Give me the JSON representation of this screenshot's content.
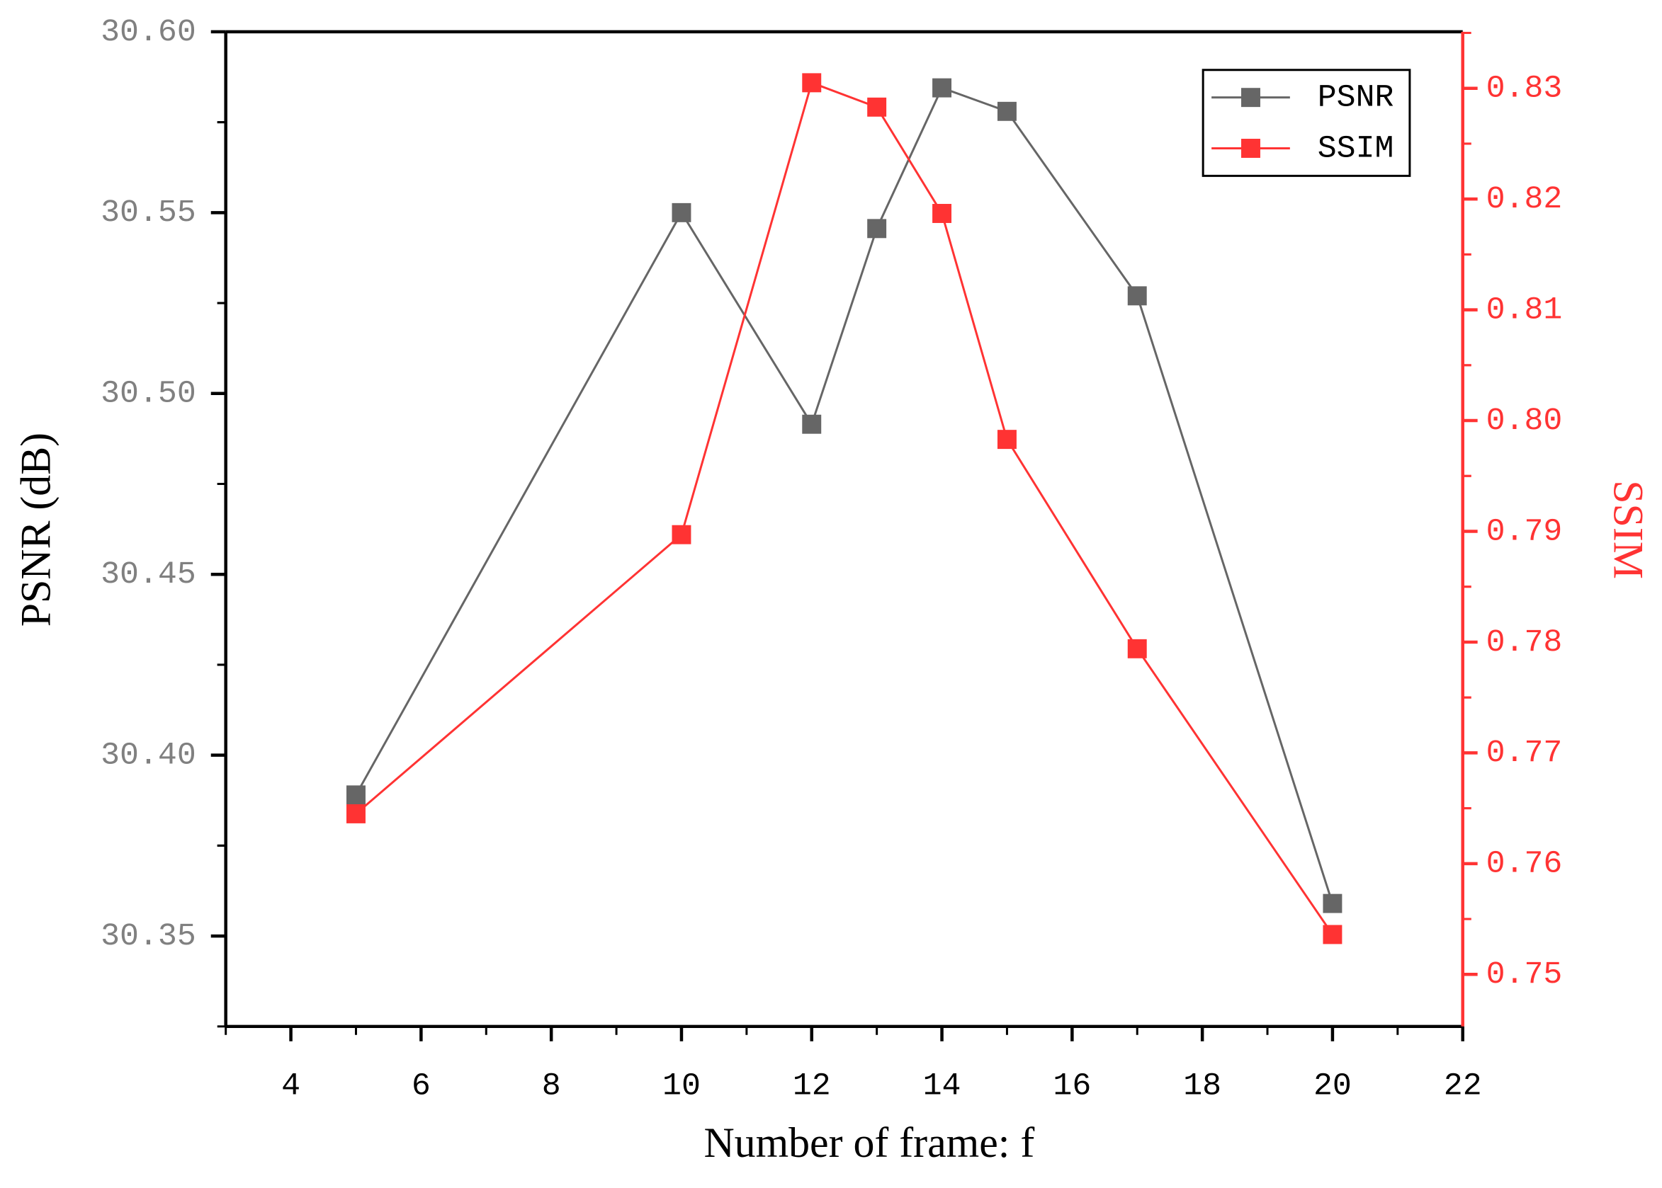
{
  "chart_data": {
    "type": "line",
    "xlabel": "Number of frame: f",
    "ylabel": "PSNR (dB)",
    "y2label": "SSIM",
    "x": [
      5,
      10,
      12,
      13,
      14,
      15,
      17,
      20
    ],
    "series": [
      {
        "name": "PSNR",
        "color": "#666666",
        "values": [
          30.389,
          30.55,
          30.4915,
          30.5456,
          30.5845,
          30.578,
          30.527,
          30.359
        ]
      },
      {
        "name": "SSIM",
        "color": "#ff3333",
        "axis": "y2",
        "values": [
          0.7645,
          0.7897,
          0.8305,
          0.8283,
          0.8187,
          0.7983,
          0.7794,
          0.7536
        ]
      }
    ],
    "xlim": [
      3,
      22
    ],
    "xticks": [
      4,
      6,
      8,
      10,
      12,
      14,
      16,
      18,
      20,
      22
    ],
    "ylim": [
      30.325,
      30.6
    ],
    "yticks": [
      30.35,
      {
        "value": 30.4,
        "label": "30.40"
      },
      30.45,
      {
        "value": 30.5,
        "label": "30.50"
      },
      30.55,
      {
        "value": 30.6,
        "label": "30.60"
      }
    ],
    "y2lim": [
      0.7453,
      0.8351
    ],
    "y2ticks": [
      0.75,
      0.76,
      0.77,
      0.78,
      0.79,
      {
        "value": 0.8,
        "label": "0.80"
      },
      0.81,
      0.82,
      0.83
    ],
    "legend": "upper right"
  }
}
